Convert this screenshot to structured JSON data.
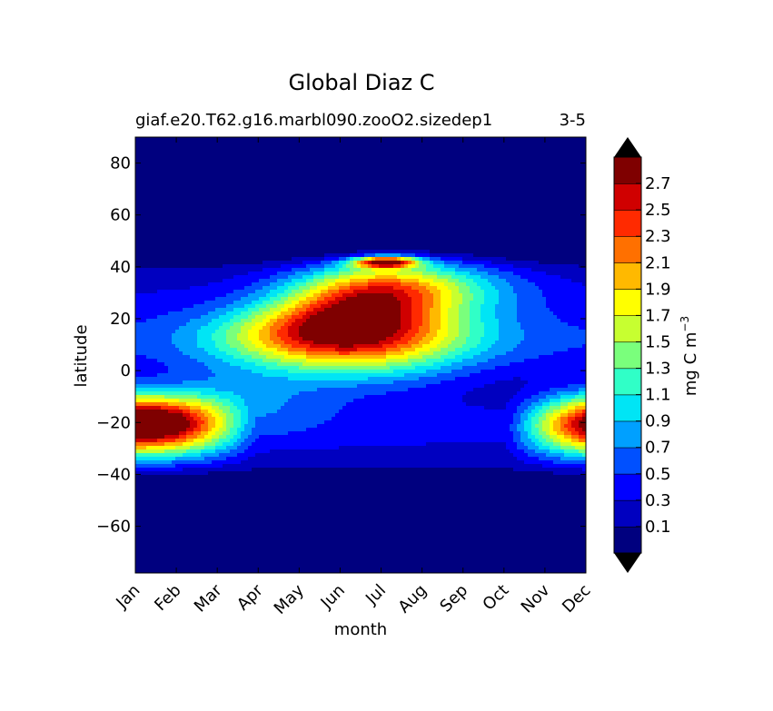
{
  "chart_data": {
    "type": "contour",
    "title": "Global Diaz C",
    "subtitle_left": "giaf.e20.T62.g16.marbl090.zooO2.sizedep1",
    "subtitle_right": "3-5",
    "xlabel": "month",
    "ylabel": "latitude",
    "x_ticks": [
      "Jan",
      "Feb",
      "Mar",
      "Apr",
      "May",
      "Jun",
      "Jul",
      "Aug",
      "Sep",
      "Oct",
      "Nov",
      "Dec"
    ],
    "y_ticks": [
      "80",
      "60",
      "40",
      "20",
      "0",
      "−20",
      "−40",
      "−60"
    ],
    "y_tick_values": [
      80,
      60,
      40,
      20,
      0,
      -20,
      -40,
      -60
    ],
    "xlim": [
      1,
      12
    ],
    "ylim": [
      -78,
      90
    ],
    "colorbar": {
      "label": "mg C m⁻³",
      "levels": [
        0,
        0.1,
        0.2,
        0.3,
        0.4,
        0.5,
        0.6,
        0.7,
        0.8,
        0.9,
        1.0,
        1.1,
        1.2,
        1.3,
        1.4,
        1.5,
        1.6,
        1.7,
        1.8,
        1.9,
        2.0,
        2.1,
        2.2,
        2.3,
        2.4,
        2.5,
        2.6,
        2.7,
        2.8
      ],
      "tick_labels": [
        "0.1",
        "0.3",
        "0.5",
        "0.7",
        "0.9",
        "1.1",
        "1.3",
        "1.5",
        "1.7",
        "1.9",
        "2.1",
        "2.3",
        "2.5",
        "2.7"
      ],
      "tick_values": [
        0.1,
        0.3,
        0.5,
        0.7,
        0.9,
        1.1,
        1.3,
        1.5,
        1.7,
        1.9,
        2.1,
        2.3,
        2.5,
        2.7
      ],
      "colors": [
        "#00007f",
        "#0000c0",
        "#0000ff",
        "#0050ff",
        "#00a0ff",
        "#00e5f5",
        "#30ffc7",
        "#7aff7c",
        "#c7ff30",
        "#ffff00",
        "#ffb900",
        "#ff7000",
        "#ff2a00",
        "#d00000",
        "#7f0000"
      ],
      "extend": "both"
    },
    "features": [
      {
        "name": "northern summer maximum",
        "month": 6.4,
        "lat": 12,
        "value": 2.75
      },
      {
        "name": "southern summer maximum (Jan)",
        "month": 1.0,
        "lat": -18,
        "value": 2.5
      },
      {
        "name": "southern summer maximum (Dec)",
        "month": 12.0,
        "lat": -17,
        "value": 2.5
      },
      {
        "name": "july peak near 42N",
        "month": 7.0,
        "lat": 42,
        "value": 2.7
      }
    ]
  }
}
